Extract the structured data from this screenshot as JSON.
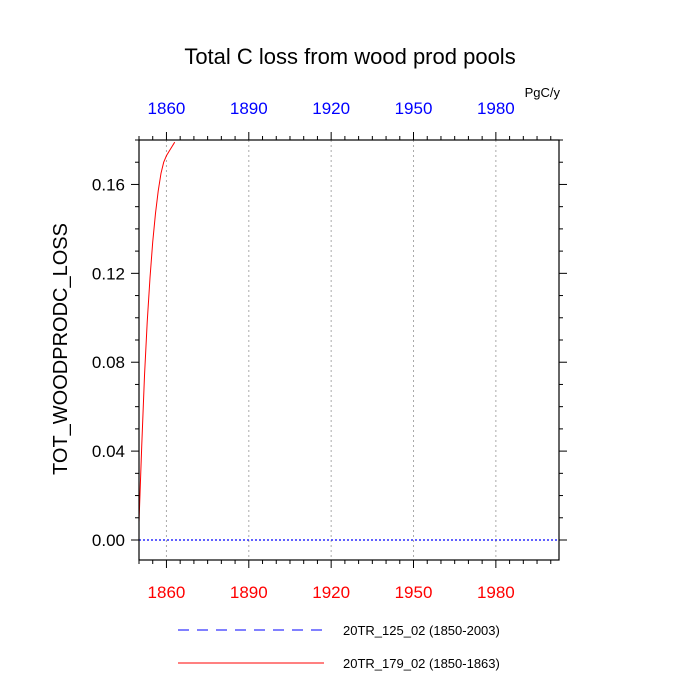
{
  "chart_data": {
    "type": "line",
    "title": "Total C loss from wood prod pools",
    "ylabel": "TOT_WOODPRODC_LOSS",
    "units": "PgC/y",
    "xlim": [
      1850,
      2003
    ],
    "ylim": [
      -0.009,
      0.18
    ],
    "xticks": [
      1860,
      1890,
      1920,
      1950,
      1980
    ],
    "xticks_top": [
      1860,
      1890,
      1920,
      1950,
      1980
    ],
    "yticks": [
      "0.00",
      "0.04",
      "0.08",
      "0.12",
      "0.16"
    ],
    "ytick_values": [
      0.0,
      0.04,
      0.08,
      0.12,
      0.16
    ],
    "grid_x": true,
    "series": [
      {
        "name": "20TR_125_02 (1850-2003)",
        "color": "#0000ff",
        "style": "dashed",
        "x": [
          1850,
          1870,
          1890,
          1910,
          1930,
          1950,
          1970,
          1990,
          2003
        ],
        "y": [
          0,
          0,
          0,
          0,
          0,
          0,
          0,
          0,
          0
        ]
      },
      {
        "name": "20TR_179_02 (1850-1863)",
        "color": "#ff0000",
        "style": "solid",
        "x": [
          1850,
          1851,
          1852,
          1853,
          1854,
          1855,
          1856,
          1857,
          1858,
          1859,
          1860,
          1861,
          1862,
          1863
        ],
        "y": [
          0.008,
          0.042,
          0.074,
          0.098,
          0.118,
          0.134,
          0.147,
          0.157,
          0.165,
          0.17,
          0.173,
          0.175,
          0.177,
          0.179
        ]
      }
    ],
    "legend_placement": "bottom"
  }
}
